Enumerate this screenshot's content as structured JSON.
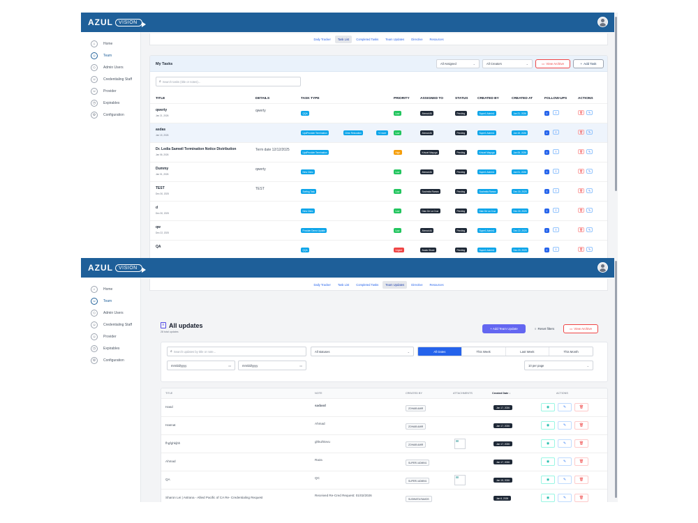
{
  "colors": {
    "topbar": "#1e5f99",
    "accent": "#2563eb",
    "primary_button": "#6366f1",
    "danger": "#ef4444",
    "low": "#22c55e",
    "high": "#f59e0b",
    "urgent": "#ef4444",
    "type_pill": "#0ea5e9",
    "creator_pill": "#0ea5e9",
    "dark_pill": "#1f2937"
  },
  "logo": {
    "main": "AZUL",
    "ring": "VISION"
  },
  "sidebar": {
    "items": [
      {
        "label": "Home",
        "icon": "home-icon",
        "glyph": "⌂"
      },
      {
        "label": "Team",
        "icon": "team-icon",
        "glyph": "☺"
      },
      {
        "label": "Admin Users",
        "icon": "shield-icon",
        "glyph": "◇"
      },
      {
        "label": "Credentialing Staff",
        "icon": "users-icon",
        "glyph": "☺"
      },
      {
        "label": "Provider",
        "icon": "user-icon",
        "glyph": "☺"
      },
      {
        "label": "Expirables",
        "icon": "clock-icon",
        "glyph": "◷"
      },
      {
        "label": "Configuration",
        "icon": "gear-icon",
        "glyph": "⚙"
      }
    ]
  },
  "tabs": [
    "Daily Tracker",
    "Task List",
    "Completed Tasks",
    "Team Updates",
    "Directive",
    "Resources"
  ],
  "tasks": {
    "heading": "My Tasks",
    "filter_assigned": "All Assigned",
    "filter_creators": "All Creators",
    "view_archive": "View Archive",
    "add_task": "Add Task",
    "search_placeholder": "Search tasks (title or notes)...",
    "columns": [
      "TITLE",
      "DETAILS",
      "TASK TYPE",
      "PRIORITY",
      "ASSIGNED TO",
      "STATUS",
      "CREATED BY",
      "CREATED AT",
      "FOLLOW-UPS",
      "ACTIONS"
    ],
    "rows": [
      {
        "title": "qwerty",
        "date": "Jan 21, 2026",
        "details": "qwerty",
        "types": [
          "QQA"
        ],
        "priority": "Low",
        "assigned": "Ahmad Ali",
        "status": "Pending",
        "creator": "Super1 Admin1",
        "created": "Jan 21, 2026",
        "followups": "0"
      },
      {
        "title": "asdas",
        "date": "Jan 15, 2026",
        "details": "",
        "types": [
          "UpdProvider Termination",
          "Clinic Relocation",
          "+4 more"
        ],
        "priority": "Low",
        "assigned": "Ahmad Ali",
        "status": "Pending",
        "creator": "Super1 Admin1",
        "created": "Jan 15, 2026",
        "followups": "0"
      },
      {
        "title": "Dr. Ledia Samwil Termination Notice Distribution",
        "date": "Jan 06, 2026",
        "details": "Term date 12/12/2025",
        "types": [
          "UpdProvider Termination"
        ],
        "priority": "High",
        "assigned": "Krisuel Mayuga",
        "status": "Pending",
        "creator": "Krisuel Mayuga",
        "created": "Jan 06, 2026",
        "followups": "0"
      },
      {
        "title": "Dummy",
        "date": "Jan 01, 2026",
        "details": "qwerty",
        "types": [
          "New Clinic"
        ],
        "priority": "Low",
        "assigned": "Ahmad Ali",
        "status": "Pending",
        "creator": "Super1 Admin1",
        "created": "Jan 01, 2026",
        "followups": "0"
      },
      {
        "title": "TEST",
        "date": "Dec 30, 2025",
        "details": "TEST",
        "types": [
          "Sorting Task"
        ],
        "priority": "Low",
        "assigned": "Sushmita Ramos",
        "status": "Pending",
        "creator": "Sushmita Ramos",
        "created": "Dec 30, 2025",
        "followups": "0"
      },
      {
        "title": "d",
        "date": "Dec 30, 2025",
        "details": "",
        "types": [
          "New Clinic"
        ],
        "priority": "Low",
        "assigned": "Dian De La Cruz",
        "status": "Pending",
        "creator": "Dian De La Cruz",
        "created": "Dec 30, 2025",
        "followups": "0"
      },
      {
        "title": "qw",
        "date": "Dec 22, 2025",
        "details": "",
        "types": [
          "Provider Demo Update"
        ],
        "priority": "Low",
        "assigned": "Ahmad Ali",
        "status": "Pending",
        "creator": "Super1 Admin1",
        "created": "Dec 22, 2025",
        "followups": "0"
      },
      {
        "title": "QA",
        "date": "",
        "details": "",
        "types": [
          "QQA"
        ],
        "priority": "Urgent",
        "assigned": "Awais Ghani",
        "status": "Pending",
        "creator": "Super1 Admin1",
        "created": "Dec 20, 2025",
        "followups": "0"
      }
    ]
  },
  "updates": {
    "heading": "All updates",
    "count": "28 total updates",
    "add_button": "+ Add Team Update",
    "reset_button": "Reset filters",
    "archive_button": "View Archive",
    "search_placeholder": "Search updates by title or note...",
    "status_select": "All statuses",
    "range_tabs": [
      "All Dates",
      "This Week",
      "Last Week",
      "This Month"
    ],
    "date_from": "mm/dd/yyyy",
    "date_to": "mm/dd/yyyy",
    "per_page": "10 per page",
    "columns": [
      "TITLE",
      "NOTE",
      "CREATED BY",
      "ATTACHMENTS",
      "Created Date ↓",
      "ACTIONS"
    ],
    "rows": [
      {
        "title": "Hasd",
        "note": "sadasd",
        "by": "ZOHAIB AMIR",
        "attach": false,
        "date": "Jan 17, 2026"
      },
      {
        "title": "Hasnat",
        "note": "Ahmad",
        "by": "ZOHAIB AMIR",
        "attach": false,
        "date": "Jan 17, 2026"
      },
      {
        "title": "fhgfghkjbh",
        "note": "ghkuhkvvu",
        "by": "ZOHAIB AMIR",
        "attach": true,
        "date": "Jan 17, 2026"
      },
      {
        "title": "Ahmad",
        "note": "Raza",
        "by": "SUPER1 ADMIN1",
        "attach": false,
        "date": "Jan 17, 2026"
      },
      {
        "title": "QA",
        "note": "QC",
        "by": "SUPER1 ADMIN1",
        "attach": true,
        "date": "Jan 15, 2026"
      },
      {
        "title": "Sharon Lei | Astrana - Allied Pacific of CA Re- Credentialing Request",
        "note": "Received Re-Cred Request: 01/02/2026",
        "note2": "Sybm",
        "by": "SUSHMITA RAMOS",
        "attach": false,
        "date": "Jan 6, 2026"
      }
    ]
  }
}
